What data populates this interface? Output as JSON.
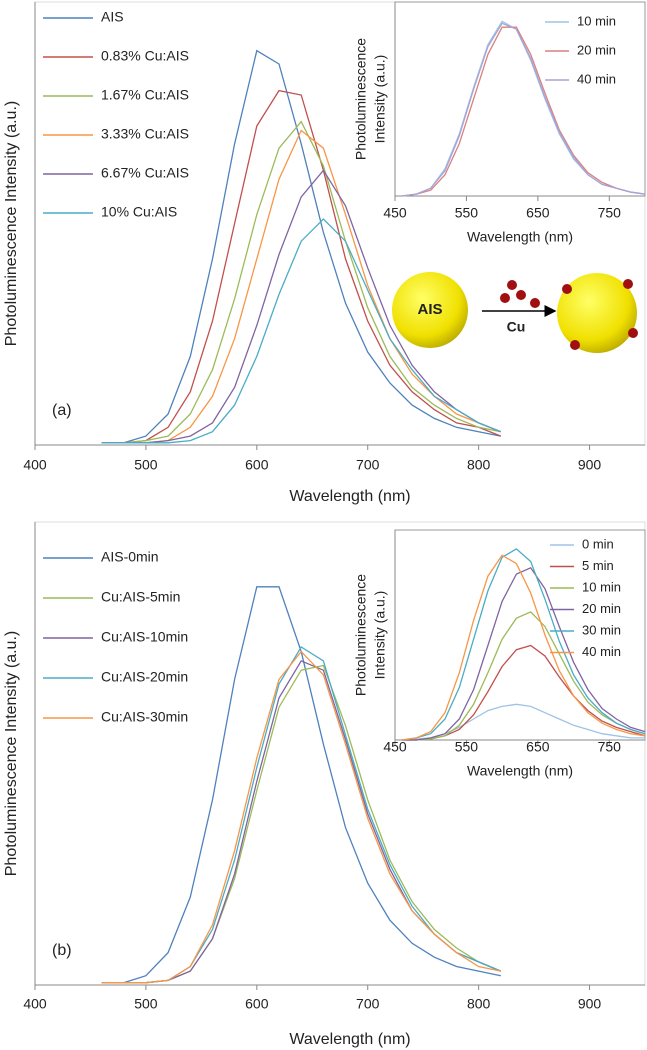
{
  "chart_data": [
    {
      "type": "line",
      "annotation": "(a)",
      "diagram_labels": [
        "AIS",
        "Cu"
      ],
      "xlabel": "Wavelength (nm)",
      "ylabel": "Photoluminescence Intensity (a.u.)",
      "xlim": [
        400,
        950
      ],
      "xticks": [
        400,
        500,
        600,
        700,
        800,
        900
      ],
      "ylim": [
        0,
        100
      ],
      "legend": "upper left",
      "x": [
        460,
        480,
        500,
        520,
        540,
        560,
        580,
        600,
        620,
        640,
        660,
        680,
        700,
        720,
        740,
        760,
        780,
        800,
        820
      ],
      "series": [
        {
          "name": "AIS",
          "color": "#4f81bd",
          "values": [
            0.5,
            0.5,
            2,
            7,
            20,
            42,
            68,
            89,
            86,
            68,
            48,
            32,
            21,
            14,
            9,
            6,
            4,
            3,
            2
          ]
        },
        {
          "name": "0.83% Cu:AIS",
          "color": "#c0504d",
          "values": [
            0.5,
            0.5,
            1,
            4,
            12,
            28,
            50,
            72,
            80,
            79,
            62,
            42,
            28,
            18,
            12,
            8,
            5,
            4,
            2
          ]
        },
        {
          "name": "1.67% Cu:AIS",
          "color": "#9bbb59",
          "values": [
            0.5,
            0.5,
            1,
            2,
            7,
            17,
            33,
            52,
            67,
            73,
            63,
            46,
            31,
            20,
            13,
            9,
            6,
            4,
            3
          ]
        },
        {
          "name": "3.33% Cu:AIS",
          "color": "#f79646",
          "values": [
            0.5,
            0.5,
            0.5,
            1,
            4,
            11,
            24,
            42,
            60,
            71,
            67,
            52,
            36,
            24,
            16,
            11,
            7,
            5,
            3
          ]
        },
        {
          "name": "6.67% Cu:AIS",
          "color": "#8064a2",
          "values": [
            0.5,
            0.5,
            0.5,
            1,
            2,
            5,
            13,
            27,
            43,
            56,
            62,
            54,
            40,
            27,
            18,
            12,
            8,
            5,
            3
          ]
        },
        {
          "name": "10% Cu:AIS",
          "color": "#4bacc6",
          "values": [
            0.5,
            0.5,
            0.5,
            0.5,
            1,
            3,
            9,
            20,
            34,
            46,
            51,
            46,
            35,
            24,
            17,
            11,
            8,
            5,
            3
          ]
        }
      ]
    },
    {
      "type": "line",
      "xlabel": "Wavelength (nm)",
      "ylabel": [
        "Photoluminescence",
        "Intensity (a.u.)"
      ],
      "xlim": [
        450,
        800
      ],
      "xticks": [
        450,
        550,
        650,
        750
      ],
      "ylim": [
        0,
        100
      ],
      "legend": "upper right",
      "x": [
        460,
        480,
        500,
        520,
        540,
        560,
        580,
        600,
        620,
        640,
        660,
        680,
        700,
        720,
        740,
        760,
        780,
        800
      ],
      "series": [
        {
          "name": "10 min",
          "color": "#9dc3e6",
          "values": [
            0,
            1,
            4,
            14,
            32,
            56,
            78,
            90,
            86,
            70,
            50,
            32,
            19,
            11,
            6,
            4,
            2,
            1
          ]
        },
        {
          "name": "20 min",
          "color": "#d9827f",
          "values": [
            0,
            1,
            3,
            11,
            27,
            50,
            73,
            87,
            87,
            73,
            53,
            34,
            21,
            12,
            7,
            4,
            2,
            1
          ]
        },
        {
          "name": "40 min",
          "color": "#a9a3d6",
          "values": [
            0,
            1,
            4,
            13,
            31,
            55,
            77,
            89,
            86,
            71,
            51,
            33,
            20,
            11,
            6,
            4,
            2,
            1
          ]
        }
      ]
    },
    {
      "type": "line",
      "annotation": "(b)",
      "xlabel": "Wavelength (nm)",
      "ylabel": "Photoluminescence Intensity (a.u.)",
      "xlim": [
        400,
        950
      ],
      "xticks": [
        400,
        500,
        600,
        700,
        800,
        900
      ],
      "ylim": [
        0,
        100
      ],
      "legend": "upper left",
      "x": [
        460,
        480,
        500,
        520,
        540,
        560,
        580,
        600,
        620,
        640,
        660,
        680,
        700,
        720,
        740,
        760,
        780,
        800,
        820
      ],
      "series": [
        {
          "name": "AIS-0min",
          "color": "#4f81bd",
          "values": [
            0.5,
            0.5,
            2,
            7,
            19,
            40,
            66,
            86,
            86,
            72,
            52,
            34,
            22,
            14,
            9,
            6,
            4,
            3,
            2
          ]
        },
        {
          "name": "Cu:AIS-5min",
          "color": "#9bbb59",
          "values": [
            0.5,
            0.5,
            0.5,
            1,
            3,
            10,
            23,
            42,
            60,
            68,
            69,
            56,
            40,
            27,
            18,
            12,
            8,
            5,
            3
          ]
        },
        {
          "name": "Cu:AIS-10min",
          "color": "#8064a2",
          "values": [
            0.5,
            0.5,
            0.5,
            1,
            3,
            10,
            24,
            44,
            62,
            70,
            68,
            53,
            37,
            25,
            16,
            11,
            7,
            5,
            3
          ]
        },
        {
          "name": "Cu:AIS-20min",
          "color": "#4bacc6",
          "values": [
            0.5,
            0.5,
            0.5,
            1,
            4,
            12,
            27,
            47,
            65,
            73,
            70,
            54,
            38,
            26,
            17,
            11,
            7,
            5,
            3
          ]
        },
        {
          "name": "Cu:AIS-30min",
          "color": "#f79646",
          "values": [
            0.5,
            0.5,
            0.5,
            1,
            4,
            13,
            29,
            49,
            66,
            72,
            67,
            52,
            36,
            24,
            16,
            11,
            7,
            4,
            3
          ]
        }
      ]
    },
    {
      "type": "line",
      "xlabel": "Wavelength (nm)",
      "ylabel": [
        "Photoluminescence",
        "Intensity (a.u.)"
      ],
      "xlim": [
        450,
        800
      ],
      "xticks": [
        450,
        550,
        650,
        750
      ],
      "ylim": [
        0,
        100
      ],
      "legend": "upper right",
      "x": [
        460,
        480,
        500,
        520,
        540,
        560,
        580,
        600,
        620,
        640,
        660,
        680,
        700,
        720,
        740,
        760,
        780,
        800
      ],
      "series": [
        {
          "name": "0 min",
          "color": "#9dc3e6",
          "values": [
            0,
            0.5,
            1,
            3,
            6,
            10,
            14,
            16,
            17,
            16,
            13,
            10,
            7,
            5,
            3,
            2,
            1,
            1
          ]
        },
        {
          "name": "5 min",
          "color": "#c0504d",
          "values": [
            0,
            0,
            0.5,
            2,
            5,
            12,
            23,
            35,
            43,
            45,
            40,
            30,
            21,
            14,
            9,
            6,
            4,
            2
          ]
        },
        {
          "name": "10 min",
          "color": "#9bbb59",
          "values": [
            0,
            0,
            0.5,
            2,
            7,
            17,
            32,
            48,
            58,
            61,
            54,
            41,
            28,
            18,
            12,
            8,
            5,
            3
          ]
        },
        {
          "name": "20 min",
          "color": "#8064a2",
          "values": [
            0,
            0,
            1,
            3,
            10,
            24,
            45,
            66,
            79,
            82,
            72,
            54,
            37,
            24,
            15,
            10,
            6,
            4
          ]
        },
        {
          "name": "30 min",
          "color": "#4bacc6",
          "values": [
            0,
            1,
            3,
            10,
            25,
            48,
            71,
            87,
            91,
            85,
            67,
            47,
            31,
            20,
            13,
            8,
            5,
            3
          ]
        },
        {
          "name": "40 min",
          "color": "#f79646",
          "values": [
            0,
            1,
            4,
            13,
            32,
            57,
            78,
            88,
            84,
            70,
            50,
            33,
            21,
            13,
            8,
            5,
            3,
            2
          ]
        }
      ]
    }
  ]
}
